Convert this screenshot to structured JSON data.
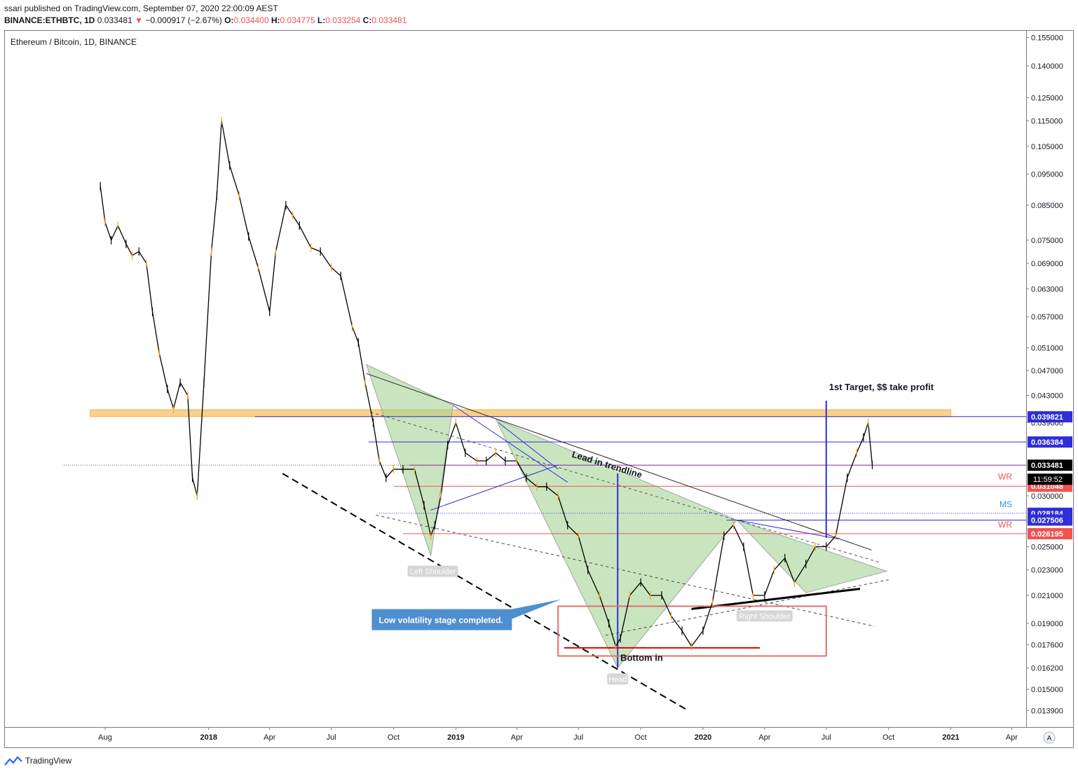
{
  "header": {
    "published": "ssari published on TradingView.com, September 07, 2020 22:00:09 AEST",
    "symbol": "BINANCE:ETHBTC, 1D",
    "last": "0.033481",
    "change_arrow": "▼",
    "change": "−0.000917 (−2.67%)",
    "o_label": "O:",
    "o_value": "0.034400",
    "h_label": "H:",
    "h_value": "0.034775",
    "l_label": "L:",
    "l_value": "0.033254",
    "c_label": "C:",
    "c_value": "0.033481"
  },
  "footer": {
    "brand": "TradingView"
  },
  "colors": {
    "accent_blue": "#2f2fd9",
    "red_level": "#ef5350",
    "zone_orange": "#f5b041",
    "triangle_green": "#a5d394",
    "candle": "#000000",
    "candle_up": "#f7a21b",
    "callout": "#4f8fd0"
  },
  "chart_data": {
    "type": "line",
    "title": "Ethereum / Bitcoin, 1D, BINANCE",
    "y_scale": "log",
    "ylim": [
      0.0135,
      0.158
    ],
    "xlim": [
      "2017-06-01",
      "2021-05-15"
    ],
    "x_ticks": [
      {
        "date": "2017-08-01",
        "label": "Aug",
        "bold": false
      },
      {
        "date": "2018-01-01",
        "label": "2018",
        "bold": true
      },
      {
        "date": "2018-04-01",
        "label": "Apr",
        "bold": false
      },
      {
        "date": "2018-07-01",
        "label": "Jul",
        "bold": false
      },
      {
        "date": "2018-10-01",
        "label": "Oct",
        "bold": false
      },
      {
        "date": "2019-01-01",
        "label": "2019",
        "bold": true
      },
      {
        "date": "2019-04-01",
        "label": "Apr",
        "bold": false
      },
      {
        "date": "2019-07-01",
        "label": "Jul",
        "bold": false
      },
      {
        "date": "2019-10-01",
        "label": "Oct",
        "bold": false
      },
      {
        "date": "2020-01-01",
        "label": "2020",
        "bold": true
      },
      {
        "date": "2020-04-01",
        "label": "Apr",
        "bold": false
      },
      {
        "date": "2020-07-01",
        "label": "Jul",
        "bold": false
      },
      {
        "date": "2020-10-01",
        "label": "Oct",
        "bold": false
      },
      {
        "date": "2021-01-01",
        "label": "2021",
        "bold": true
      },
      {
        "date": "2021-04-01",
        "label": "Apr",
        "bold": false
      }
    ],
    "y_ticks": [
      "0.155000",
      "0.140000",
      "0.125000",
      "0.115000",
      "0.105000",
      "0.095000",
      "0.085000",
      "0.075000",
      "0.069000",
      "0.063000",
      "0.057000",
      "0.051000",
      "0.047000",
      "0.043000",
      "0.039000",
      "0.030000",
      "0.025000",
      "0.023000",
      "0.021000",
      "0.019000",
      "0.017600",
      "0.016200",
      "0.015000",
      "0.013900"
    ],
    "price_labels": [
      {
        "value": 0.039821,
        "text": "0.039821",
        "color": "#2f2fd9"
      },
      {
        "value": 0.036384,
        "text": "0.036384",
        "color": "#2f2fd9"
      },
      {
        "value": 0.033481,
        "text": "0.033481",
        "color": "#000000"
      },
      {
        "value": 0.031048,
        "text": "0.031048",
        "color": "#ef5350"
      },
      {
        "value": 0.028184,
        "text": "0.028184",
        "color": "#2f2fd9"
      },
      {
        "value": 0.027506,
        "text": "0.027506",
        "color": "#2f2fd9"
      },
      {
        "value": 0.026195,
        "text": "0.026195",
        "color": "#ef5350"
      }
    ],
    "countdown": "11:59:52",
    "series": [
      {
        "x": [
          "2017-07-25",
          "2017-08-01",
          "2017-08-10",
          "2017-08-20",
          "2017-09-01",
          "2017-09-10",
          "2017-09-20",
          "2017-10-01",
          "2017-10-10",
          "2017-10-20",
          "2017-11-01",
          "2017-11-10",
          "2017-11-20",
          "2017-12-01",
          "2017-12-08",
          "2017-12-15",
          "2017-12-25",
          "2018-01-05",
          "2018-01-13",
          "2018-01-20",
          "2018-02-01",
          "2018-02-15",
          "2018-03-01",
          "2018-03-15",
          "2018-04-01",
          "2018-04-10",
          "2018-04-25",
          "2018-05-05",
          "2018-05-15",
          "2018-06-01",
          "2018-06-15",
          "2018-07-01",
          "2018-07-15",
          "2018-08-01",
          "2018-08-10",
          "2018-08-20",
          "2018-09-01",
          "2018-09-10",
          "2018-09-20",
          "2018-10-01",
          "2018-10-15",
          "2018-11-01",
          "2018-11-15",
          "2018-11-25",
          "2018-12-01",
          "2018-12-10",
          "2018-12-20",
          "2019-01-01",
          "2019-01-15",
          "2019-02-01",
          "2019-02-15",
          "2019-03-01",
          "2019-03-15",
          "2019-04-01",
          "2019-04-15",
          "2019-05-01",
          "2019-05-15",
          "2019-06-01",
          "2019-06-15",
          "2019-07-01",
          "2019-07-15",
          "2019-08-01",
          "2019-08-15",
          "2019-08-25",
          "2019-09-01",
          "2019-09-15",
          "2019-10-01",
          "2019-10-15",
          "2019-11-01",
          "2019-11-15",
          "2019-12-01",
          "2019-12-15",
          "2020-01-01",
          "2020-01-15",
          "2020-02-01",
          "2020-02-15",
          "2020-03-01",
          "2020-03-15",
          "2020-04-01",
          "2020-04-15",
          "2020-05-01",
          "2020-05-15",
          "2020-06-01",
          "2020-06-15",
          "2020-07-01",
          "2020-07-15",
          "2020-08-01",
          "2020-08-15",
          "2020-08-25",
          "2020-09-01",
          "2020-09-07"
        ],
        "y": [
          0.091,
          0.08,
          0.075,
          0.079,
          0.074,
          0.071,
          0.072,
          0.069,
          0.058,
          0.05,
          0.044,
          0.041,
          0.045,
          0.043,
          0.032,
          0.03,
          0.045,
          0.072,
          0.088,
          0.115,
          0.098,
          0.088,
          0.076,
          0.068,
          0.058,
          0.072,
          0.085,
          0.082,
          0.079,
          0.073,
          0.072,
          0.068,
          0.066,
          0.055,
          0.052,
          0.045,
          0.039,
          0.034,
          0.032,
          0.033,
          0.033,
          0.033,
          0.029,
          0.026,
          0.027,
          0.03,
          0.036,
          0.039,
          0.035,
          0.034,
          0.034,
          0.035,
          0.034,
          0.034,
          0.032,
          0.031,
          0.031,
          0.03,
          0.027,
          0.026,
          0.023,
          0.021,
          0.019,
          0.0175,
          0.018,
          0.021,
          0.022,
          0.021,
          0.021,
          0.0195,
          0.0185,
          0.0175,
          0.0185,
          0.0205,
          0.026,
          0.027,
          0.025,
          0.021,
          0.021,
          0.023,
          0.024,
          0.022,
          0.0235,
          0.025,
          0.025,
          0.026,
          0.032,
          0.035,
          0.037,
          0.039,
          0.0335
        ]
      }
    ],
    "annotations": [
      {
        "text": "1st Target, $$ take profit"
      },
      {
        "text": "Lead in trendline"
      },
      {
        "text": "WR"
      },
      {
        "text": "MS"
      },
      {
        "text": "WR"
      },
      {
        "text": "Left Shoulder"
      },
      {
        "text": "Head"
      },
      {
        "text": "Right Shoulder"
      },
      {
        "text": "Bottom in"
      },
      {
        "text": "Low volatility stage completed."
      }
    ],
    "grid": false,
    "legend": "none"
  }
}
